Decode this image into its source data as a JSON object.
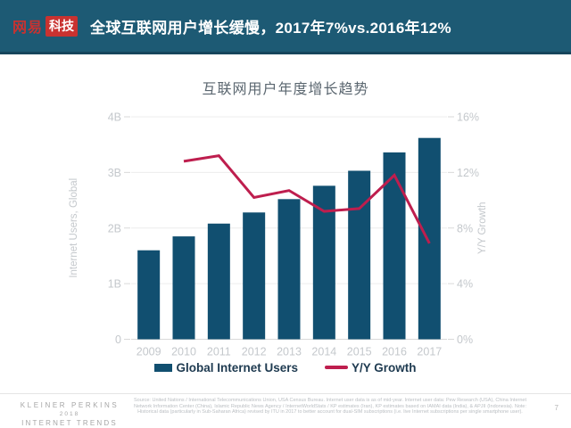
{
  "header": {
    "logo_netease": "网易",
    "logo_tech": "科技",
    "title": "全球互联网用户增长缓慢，2017年7%vs.2016年12%"
  },
  "chart_data": {
    "type": "bar+line combo",
    "title": "互联网用户年度增长趋势",
    "categories": [
      "2009",
      "2010",
      "2011",
      "2012",
      "2013",
      "2014",
      "2015",
      "2016",
      "2017"
    ],
    "series": [
      {
        "name": "Global Internet Users",
        "type": "bar",
        "axis": "left",
        "color": "#114F70",
        "values": [
          1.6,
          1.85,
          2.08,
          2.28,
          2.52,
          2.76,
          3.03,
          3.36,
          3.62
        ]
      },
      {
        "name": "Y/Y Growth",
        "type": "line",
        "axis": "right",
        "color": "#BE1E4E",
        "values": [
          null,
          12.8,
          13.2,
          10.2,
          10.7,
          9.2,
          9.4,
          11.8,
          6.9
        ]
      }
    ],
    "ylabel_left": "Internet Users, Global",
    "ylabel_right": "Y/Y Growth",
    "yticks_left": [
      "0",
      "1B",
      "2B",
      "3B",
      "4B"
    ],
    "yticks_right": [
      "0%",
      "4%",
      "8%",
      "12%",
      "16%"
    ],
    "ylim_left": [
      0,
      4
    ],
    "ylim_right": [
      0,
      16
    ],
    "grid": true,
    "legend_position": "bottom"
  },
  "colors": {
    "header_bg": "#1D5A74",
    "logo_red": "#C93230",
    "bar": "#114F70",
    "line": "#BE1E4E",
    "chart_title_text": "#5B6770",
    "axis_text": "#C4C8CC",
    "legend_text": "#1E3A50"
  },
  "footer": {
    "brand_line1": "KLEINER PERKINS",
    "brand_line2": "2018",
    "brand_line3": "INTERNET TRENDS",
    "source": "Source: United Nations / International Telecommunications Union, USA Census Bureau. Internet user data is as of mid-year. Internet user data: Pew Research (USA), China Internet Network Information Center (China), Islamic Republic News Agency / InternetWorldStats / KP estimates (Iran), KP estimates based on IAMAI data (India), & APJII (Indonesia). Note: Historical data (particularly in Sub-Saharan Africa) revised by ITU in 2017 to better account for dual-SIM subscriptions (i.e. live Internet subscriptions per single smartphone user).",
    "page_number": "7"
  }
}
